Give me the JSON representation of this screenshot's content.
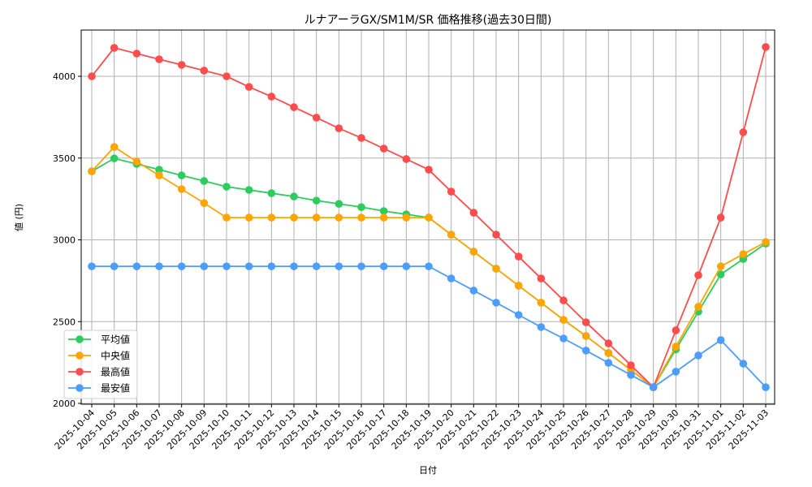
{
  "chart_data": {
    "type": "line",
    "title": "ルナアーラGX/SM1M/SR 価格推移(過去30日間)",
    "xlabel": "日付",
    "ylabel": "値 (円)",
    "ylim": [
      2000,
      4280
    ],
    "yticks": [
      2000,
      2500,
      3000,
      3500,
      4000
    ],
    "grid": true,
    "legend_position": "lower left",
    "categories": [
      "2025-10-04",
      "2025-10-05",
      "2025-10-06",
      "2025-10-07",
      "2025-10-08",
      "2025-10-09",
      "2025-10-10",
      "2025-10-11",
      "2025-10-12",
      "2025-10-13",
      "2025-10-14",
      "2025-10-15",
      "2025-10-16",
      "2025-10-17",
      "2025-10-18",
      "2025-10-19",
      "2025-10-20",
      "2025-10-21",
      "2025-10-22",
      "2025-10-23",
      "2025-10-24",
      "2025-10-25",
      "2025-10-26",
      "2025-10-27",
      "2025-10-28",
      "2025-10-29",
      "2025-10-30",
      "2025-10-31",
      "2025-11-01",
      "2025-11-02",
      "2025-11-03"
    ],
    "series": [
      {
        "name": "平均値",
        "color": "#2ecc5f",
        "values": [
          3419,
          3498,
          3464,
          3429,
          3394,
          3360,
          3325,
          3305,
          3285,
          3265,
          3240,
          3220,
          3200,
          3176,
          3156,
          3136,
          3032,
          2928,
          2824,
          2720,
          2616,
          2511,
          2412,
          2308,
          2204,
          2099,
          2330,
          2561,
          2789,
          2883,
          2977
        ]
      },
      {
        "name": "中央値",
        "color": "#ffa500",
        "values": [
          3419,
          3568,
          3479,
          3394,
          3310,
          3225,
          3136,
          3136,
          3136,
          3136,
          3136,
          3136,
          3136,
          3136,
          3136,
          3136,
          3032,
          2928,
          2824,
          2720,
          2616,
          2511,
          2412,
          2308,
          2204,
          2099,
          2347,
          2591,
          2838,
          2913,
          2987
        ]
      },
      {
        "name": "最高値",
        "color": "#ff4d4d",
        "values": [
          4000,
          4174,
          4139,
          4104,
          4070,
          4035,
          4000,
          3935,
          3876,
          3811,
          3747,
          3682,
          3623,
          3558,
          3494,
          3429,
          3295,
          3166,
          3032,
          2898,
          2764,
          2630,
          2496,
          2367,
          2233,
          2099,
          2447,
          2784,
          3136,
          3658,
          4179
        ]
      },
      {
        "name": "最安値",
        "color": "#4d9dff",
        "values": [
          2838,
          2838,
          2838,
          2838,
          2838,
          2838,
          2838,
          2838,
          2838,
          2838,
          2838,
          2838,
          2838,
          2838,
          2838,
          2838,
          2764,
          2690,
          2616,
          2541,
          2467,
          2397,
          2323,
          2248,
          2174,
          2099,
          2194,
          2293,
          2387,
          2243,
          2099
        ]
      }
    ]
  }
}
